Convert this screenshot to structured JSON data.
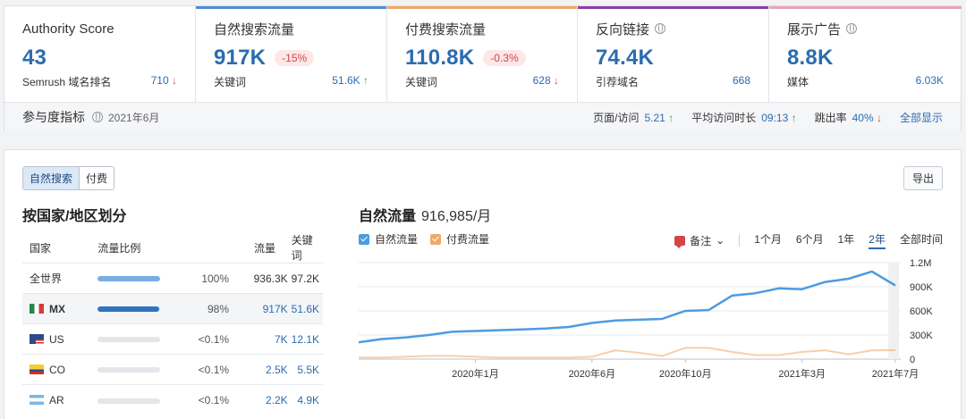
{
  "metrics": [
    {
      "label": "Authority Score",
      "value": "43",
      "badge": "",
      "sub_name": "Semrush 域名排名",
      "sub_value": "710",
      "sub_arrow": "↓",
      "bar_color": ""
    },
    {
      "label": "自然搜索流量",
      "value": "917K",
      "badge": "-15%",
      "sub_name": "关键词",
      "sub_value": "51.6K",
      "sub_arrow": "↑",
      "bar_color": "#4d8ed3"
    },
    {
      "label": "付费搜索流量",
      "value": "110.8K",
      "badge": "-0.3%",
      "sub_name": "关键词",
      "sub_value": "628",
      "sub_arrow": "↓",
      "bar_color": "#f0a868"
    },
    {
      "label": "反向链接",
      "value": "74.4K",
      "badge": "",
      "sub_name": "引荐域名",
      "sub_value": "668",
      "sub_arrow": "",
      "bar_color": "#8a3fa8"
    },
    {
      "label": "展示广告",
      "value": "8.8K",
      "badge": "",
      "sub_name": "媒体",
      "sub_value": "6.03K",
      "sub_arrow": "",
      "bar_color": "#e8a5b8"
    }
  ],
  "engagement": {
    "title": "参与度指标",
    "date": "2021年6月",
    "pages_label": "页面/访问",
    "pages_value": "5.21",
    "duration_label": "平均访问时长",
    "duration_value": "09:13",
    "bounce_label": "跳出率",
    "bounce_value": "40%",
    "show_all": "全部显示"
  },
  "tabs": {
    "organic": "自然搜索",
    "paid": "付费"
  },
  "export_label": "导出",
  "countries": {
    "title": "按国家/地区划分",
    "headers": {
      "country": "国家",
      "share": "流量比例",
      "traffic": "流量",
      "keywords": "关键词"
    },
    "rows": [
      {
        "name": "全世界",
        "flag": "",
        "share": 1.0,
        "pct": "100%",
        "traffic": "936.3K",
        "keywords": "97.2K"
      },
      {
        "name": "MX",
        "flag": "mx",
        "share": 0.98,
        "pct": "98%",
        "traffic": "917K",
        "keywords": "51.6K"
      },
      {
        "name": "US",
        "flag": "us",
        "share": 0.0,
        "pct": "<0.1%",
        "traffic": "7K",
        "keywords": "12.1K"
      },
      {
        "name": "CO",
        "flag": "co",
        "share": 0.0,
        "pct": "<0.1%",
        "traffic": "2.5K",
        "keywords": "5.5K"
      },
      {
        "name": "AR",
        "flag": "ar",
        "share": 0.0,
        "pct": "<0.1%",
        "traffic": "2.2K",
        "keywords": "4.9K"
      }
    ]
  },
  "chart_header": {
    "title": "自然流量",
    "value": "916,985/月"
  },
  "legend": {
    "organic": "自然流量",
    "paid": "付费流量",
    "organic_color": "#4d9be0",
    "paid_color": "#f0a868"
  },
  "ranges": {
    "note": "备注",
    "items": [
      "1个月",
      "6个月",
      "1年",
      "2年",
      "全部时间"
    ],
    "active": "2年"
  },
  "chart_data": {
    "type": "line",
    "title": "",
    "xlabel": "",
    "ylabel": "",
    "ylim": [
      0,
      1200000
    ],
    "yticks": [
      "0",
      "300K",
      "600K",
      "900K",
      "1.2M"
    ],
    "ytick_values": [
      0,
      300000,
      600000,
      900000,
      1200000
    ],
    "xticks": [
      "2020年1月",
      "2020年6月",
      "2020年10月",
      "2021年3月",
      "2021年7月"
    ],
    "xtick_positions": [
      5,
      10,
      14,
      19,
      23
    ],
    "x": [
      "2019年8月",
      "2019年9月",
      "2019年10月",
      "2019年11月",
      "2019年12月",
      "2020年1月",
      "2020年2月",
      "2020年3月",
      "2020年4月",
      "2020年5月",
      "2020年6月",
      "2020年7月",
      "2020年8月",
      "2020年9月",
      "2020年10月",
      "2020年11月",
      "2020年12月",
      "2021年1月",
      "2021年2月",
      "2021年3月",
      "2021年4月",
      "2021年5月",
      "2021年6月",
      "2021年7月"
    ],
    "series": [
      {
        "name": "自然流量",
        "color": "#4d9be0",
        "values": [
          210000,
          250000,
          270000,
          300000,
          340000,
          350000,
          360000,
          370000,
          380000,
          400000,
          450000,
          480000,
          490000,
          500000,
          600000,
          610000,
          790000,
          820000,
          880000,
          870000,
          960000,
          1000000,
          1090000,
          917000
        ]
      },
      {
        "name": "付费流量",
        "color": "#f0a868",
        "values": [
          20000,
          20000,
          30000,
          40000,
          40000,
          30000,
          20000,
          20000,
          20000,
          20000,
          30000,
          110000,
          80000,
          40000,
          140000,
          140000,
          90000,
          50000,
          50000,
          90000,
          110000,
          60000,
          110000,
          111000
        ]
      }
    ],
    "grid": true,
    "legend": "top-left"
  }
}
